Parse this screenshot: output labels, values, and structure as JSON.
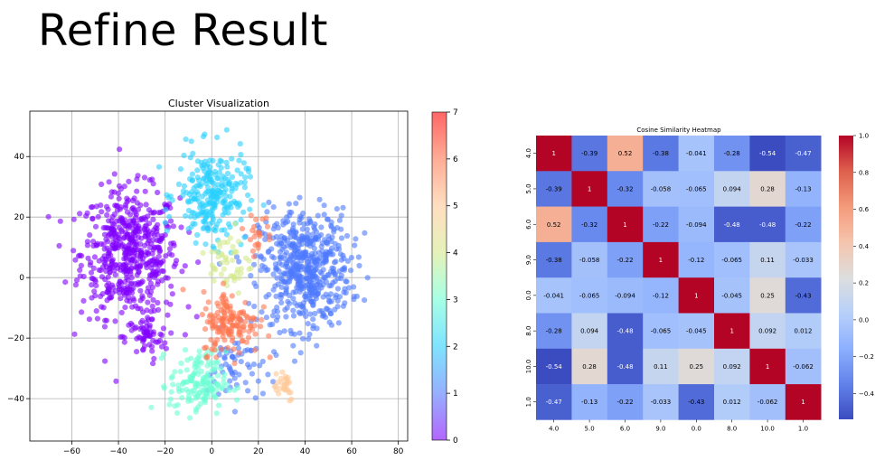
{
  "page": {
    "title": "Refine Result"
  },
  "colors": {
    "cluster_0": "#8000ff",
    "cluster_1": "#4f7aff",
    "cluster_2": "#2ad0ff",
    "cluster_3": "#6cffd4",
    "cluster_4": "#d4e98a",
    "cluster_5": "#ffc896",
    "cluster_6": "#ff7650",
    "cluster_7": "#ff0000"
  },
  "chart_data": [
    {
      "type": "scatter",
      "title": "Cluster Visualization",
      "xlabel": "",
      "ylabel": "",
      "xlim": [
        -78,
        84
      ],
      "ylim": [
        -54,
        55
      ],
      "xticks": [
        -60,
        -40,
        -20,
        0,
        20,
        40,
        60,
        80
      ],
      "yticks": [
        -40,
        -20,
        0,
        20,
        40
      ],
      "grid": true,
      "colormap": "rainbow",
      "colorbar": {
        "ticks": [
          0,
          1,
          2,
          3,
          4,
          5,
          6,
          7
        ],
        "range": [
          0,
          7
        ]
      },
      "clusters": [
        {
          "label": 0,
          "center": [
            -35,
            8
          ],
          "spread": [
            14,
            14
          ],
          "count": 560
        },
        {
          "label": 0,
          "center": [
            -28,
            -20
          ],
          "spread": [
            6,
            5
          ],
          "count": 60
        },
        {
          "label": 1,
          "center": [
            40,
            3
          ],
          "spread": [
            13,
            13
          ],
          "count": 560
        },
        {
          "label": 1,
          "center": [
            10,
            -30
          ],
          "spread": [
            8,
            8
          ],
          "count": 60
        },
        {
          "label": 2,
          "center": [
            0,
            27
          ],
          "spread": [
            10,
            10
          ],
          "count": 260
        },
        {
          "label": 3,
          "center": [
            -6,
            -35
          ],
          "spread": [
            8,
            7
          ],
          "count": 150
        },
        {
          "label": 4,
          "center": [
            8,
            5
          ],
          "spread": [
            6,
            8
          ],
          "count": 50
        },
        {
          "label": 5,
          "center": [
            30,
            -35
          ],
          "spread": [
            4,
            4
          ],
          "count": 28
        },
        {
          "label": 6,
          "center": [
            8,
            -15
          ],
          "spread": [
            8,
            7
          ],
          "count": 150
        },
        {
          "label": 6,
          "center": [
            20,
            15
          ],
          "spread": [
            4,
            4
          ],
          "count": 22
        }
      ]
    },
    {
      "type": "heatmap",
      "title": "Cosine Similarity Heatmap",
      "labels": [
        "4.0",
        "5.0",
        "6.0",
        "9.0",
        "0.0",
        "8.0",
        "10.0",
        "1.0"
      ],
      "matrix": [
        [
          1,
          -0.39,
          0.52,
          -0.38,
          -0.041,
          -0.28,
          -0.54,
          -0.47
        ],
        [
          -0.39,
          1,
          -0.32,
          -0.058,
          -0.065,
          0.094,
          0.28,
          -0.13
        ],
        [
          0.52,
          -0.32,
          1,
          -0.22,
          -0.094,
          -0.48,
          -0.48,
          -0.22
        ],
        [
          -0.38,
          -0.058,
          -0.22,
          1,
          -0.12,
          -0.065,
          0.11,
          -0.033
        ],
        [
          -0.041,
          -0.065,
          -0.094,
          -0.12,
          1,
          -0.045,
          0.25,
          -0.43
        ],
        [
          -0.28,
          0.094,
          -0.48,
          -0.065,
          -0.045,
          1,
          0.092,
          0.012
        ],
        [
          -0.54,
          0.28,
          -0.48,
          0.11,
          0.25,
          0.092,
          1,
          -0.062
        ],
        [
          -0.47,
          -0.13,
          -0.22,
          -0.033,
          -0.43,
          0.012,
          -0.062,
          1
        ]
      ],
      "vmin": -0.54,
      "vmax": 1.0,
      "colormap": "coolwarm",
      "colorbar": {
        "ticks": [
          1.0,
          0.8,
          0.6,
          0.4,
          0.2,
          0.0,
          -0.2,
          -0.4
        ],
        "tick_labels": [
          "1.0",
          "0.8",
          "0.6",
          "0.4",
          "0.2",
          "0.0",
          "−0.2",
          "−0.4"
        ]
      }
    }
  ]
}
